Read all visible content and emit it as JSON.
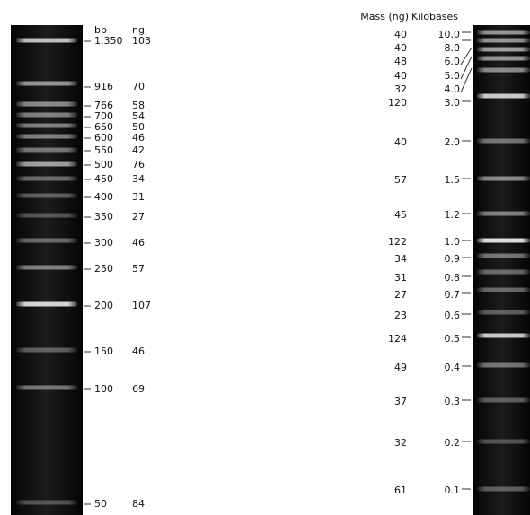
{
  "left": {
    "headers": {
      "size": "bp",
      "mass": "ng"
    },
    "bands": [
      {
        "size": "1,350",
        "mass": "103"
      },
      {
        "size": "916",
        "mass": "70"
      },
      {
        "size": "766",
        "mass": "58"
      },
      {
        "size": "700",
        "mass": "54"
      },
      {
        "size": "650",
        "mass": "50"
      },
      {
        "size": "600",
        "mass": "46"
      },
      {
        "size": "550",
        "mass": "42"
      },
      {
        "size": "500",
        "mass": "76"
      },
      {
        "size": "450",
        "mass": "34"
      },
      {
        "size": "400",
        "mass": "31"
      },
      {
        "size": "350",
        "mass": "27"
      },
      {
        "size": "300",
        "mass": "46"
      },
      {
        "size": "250",
        "mass": "57"
      },
      {
        "size": "200",
        "mass": "107"
      },
      {
        "size": "150",
        "mass": "46"
      },
      {
        "size": "100",
        "mass": "69"
      },
      {
        "size": "50",
        "mass": "84"
      }
    ]
  },
  "right": {
    "headers": {
      "mass": "Mass (ng)",
      "size": "Kilobases"
    },
    "bands": [
      {
        "size": "10.0",
        "mass": "40"
      },
      {
        "size": "8.0",
        "mass": "40"
      },
      {
        "size": "6.0",
        "mass": "48"
      },
      {
        "size": "5.0",
        "mass": "40"
      },
      {
        "size": "4.0",
        "mass": "32"
      },
      {
        "size": "3.0",
        "mass": "120"
      },
      {
        "size": "2.0",
        "mass": "40"
      },
      {
        "size": "1.5",
        "mass": "57"
      },
      {
        "size": "1.2",
        "mass": "45"
      },
      {
        "size": "1.0",
        "mass": "122"
      },
      {
        "size": "0.9",
        "mass": "34"
      },
      {
        "size": "0.8",
        "mass": "31"
      },
      {
        "size": "0.7",
        "mass": "27"
      },
      {
        "size": "0.6",
        "mass": "23"
      },
      {
        "size": "0.5",
        "mass": "124"
      },
      {
        "size": "0.4",
        "mass": "49"
      },
      {
        "size": "0.3",
        "mass": "37"
      },
      {
        "size": "0.2",
        "mass": "32"
      },
      {
        "size": "0.1",
        "mass": "61"
      }
    ]
  }
}
